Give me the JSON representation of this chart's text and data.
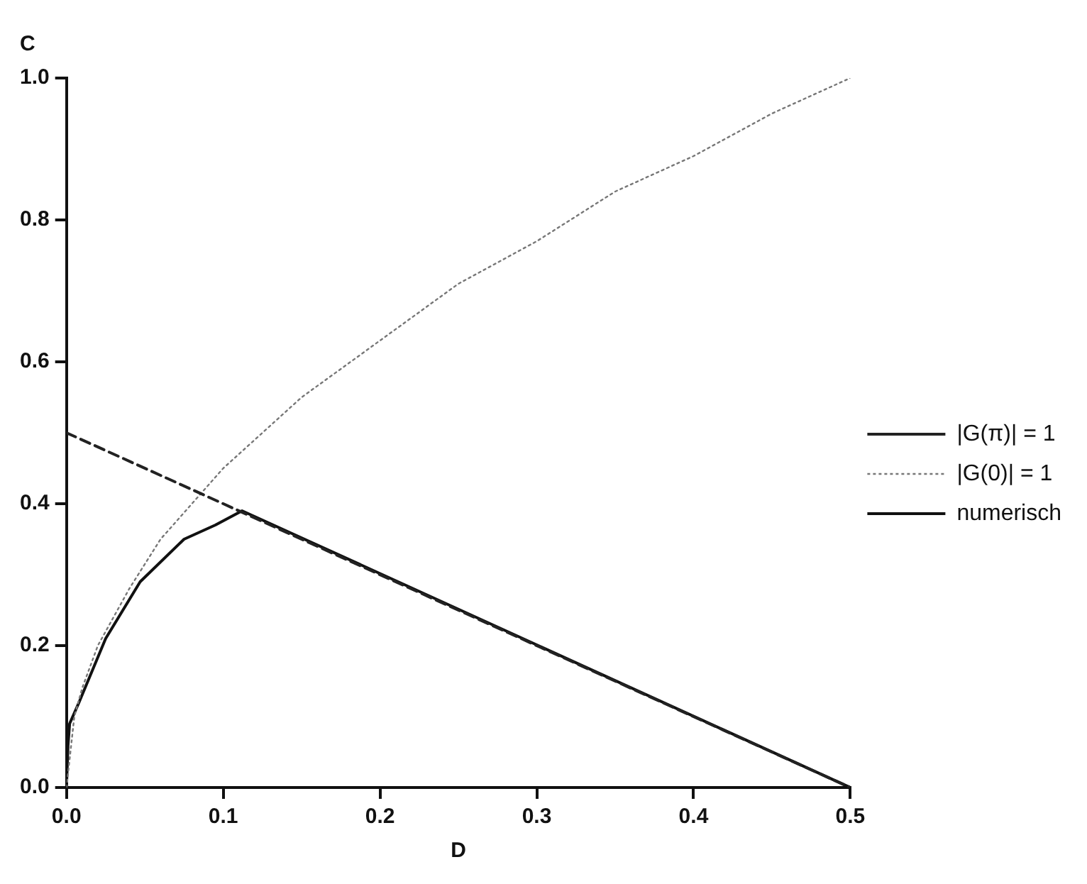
{
  "chart_data": {
    "type": "line",
    "xlabel": "D",
    "ylabel": "C",
    "xlim": [
      0,
      0.5
    ],
    "ylim": [
      0,
      1
    ],
    "xticks": [
      {
        "value": 0,
        "label": "0.0"
      },
      {
        "value": 0.1,
        "label": "0.1"
      },
      {
        "value": 0.2,
        "label": "0.2"
      },
      {
        "value": 0.3,
        "label": "0.3"
      },
      {
        "value": 0.4,
        "label": "0.4"
      },
      {
        "value": 0.5,
        "label": "0.5"
      }
    ],
    "yticks": [
      {
        "value": 0,
        "label": "0.0"
      },
      {
        "value": 0.2,
        "label": "0.2"
      },
      {
        "value": 0.4,
        "label": "0.4"
      },
      {
        "value": 0.6,
        "label": "0.6"
      },
      {
        "value": 0.8,
        "label": "0.8"
      },
      {
        "value": 1,
        "label": "1.0"
      }
    ],
    "grid": false,
    "legend": "right",
    "marker": "none",
    "series": [
      {
        "name": "|G(π)| = 1",
        "color": "#222222",
        "line_style": "dashed",
        "x": [
          0,
          0.5
        ],
        "values": [
          0.5,
          0
        ]
      },
      {
        "name": "|G(0)| = 1",
        "color": "#777777",
        "line_style": "dotted",
        "x": [
          0,
          0.005,
          0.01,
          0.02,
          0.04,
          0.06,
          0.08,
          0.1,
          0.15,
          0.2,
          0.25,
          0.3,
          0.35,
          0.4,
          0.45,
          0.5
        ],
        "values": [
          0,
          0.1,
          0.14,
          0.2,
          0.28,
          0.35,
          0.4,
          0.45,
          0.55,
          0.63,
          0.71,
          0.77,
          0.84,
          0.89,
          0.95,
          1.0
        ]
      },
      {
        "name": "numerisch",
        "color": "#111111",
        "line_style": "solid",
        "x": [
          0,
          0.001,
          0.002,
          0.008,
          0.025,
          0.047,
          0.075,
          0.095,
          0.112,
          0.5
        ],
        "values": [
          0,
          0.06,
          0.09,
          0.12,
          0.21,
          0.29,
          0.35,
          0.37,
          0.39,
          0
        ]
      }
    ]
  }
}
